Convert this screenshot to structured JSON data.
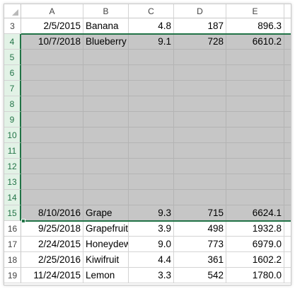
{
  "columns": [
    "A",
    "B",
    "C",
    "D",
    "E"
  ],
  "rows": [
    {
      "num": "3",
      "selected": false,
      "cells": [
        "2/5/2015",
        "Banana",
        "4.8",
        "187",
        "896.3"
      ]
    },
    {
      "num": "4",
      "selected": true,
      "cells": [
        "10/7/2018",
        "Blueberry",
        "9.1",
        "728",
        "6610.2"
      ]
    },
    {
      "num": "5",
      "selected": true,
      "cells": [
        "",
        "",
        "",
        "",
        ""
      ]
    },
    {
      "num": "6",
      "selected": true,
      "cells": [
        "",
        "",
        "",
        "",
        ""
      ]
    },
    {
      "num": "7",
      "selected": true,
      "cells": [
        "",
        "",
        "",
        "",
        ""
      ]
    },
    {
      "num": "8",
      "selected": true,
      "cells": [
        "",
        "",
        "",
        "",
        ""
      ]
    },
    {
      "num": "9",
      "selected": true,
      "cells": [
        "",
        "",
        "",
        "",
        ""
      ]
    },
    {
      "num": "10",
      "selected": true,
      "cells": [
        "",
        "",
        "",
        "",
        ""
      ]
    },
    {
      "num": "11",
      "selected": true,
      "cells": [
        "",
        "",
        "",
        "",
        ""
      ]
    },
    {
      "num": "12",
      "selected": true,
      "cells": [
        "",
        "",
        "",
        "",
        ""
      ]
    },
    {
      "num": "13",
      "selected": true,
      "cells": [
        "",
        "",
        "",
        "",
        ""
      ]
    },
    {
      "num": "14",
      "selected": true,
      "cells": [
        "",
        "",
        "",
        "",
        ""
      ]
    },
    {
      "num": "15",
      "selected": true,
      "cells": [
        "8/10/2016",
        "Grape",
        "9.3",
        "715",
        "6624.1"
      ]
    },
    {
      "num": "16",
      "selected": false,
      "cells": [
        "9/25/2018",
        "Grapefruit",
        "3.9",
        "498",
        "1932.8"
      ]
    },
    {
      "num": "17",
      "selected": false,
      "cells": [
        "2/24/2015",
        "Honeydew",
        "9.0",
        "773",
        "6979.0"
      ]
    },
    {
      "num": "18",
      "selected": false,
      "cells": [
        "2/25/2016",
        "Kiwifruit",
        "4.4",
        "361",
        "1602.2"
      ]
    },
    {
      "num": "19",
      "selected": false,
      "cells": [
        "11/24/2015",
        "Lemon",
        "3.3",
        "542",
        "1780.0"
      ]
    }
  ],
  "colors": {
    "selection_accent": "#217346",
    "selected_fill": "#c6c6c6",
    "selected_header_fill": "#e2f2e6"
  },
  "icons": {
    "corner": "select-all-triangle-icon",
    "fill_handle": "fill-handle"
  }
}
